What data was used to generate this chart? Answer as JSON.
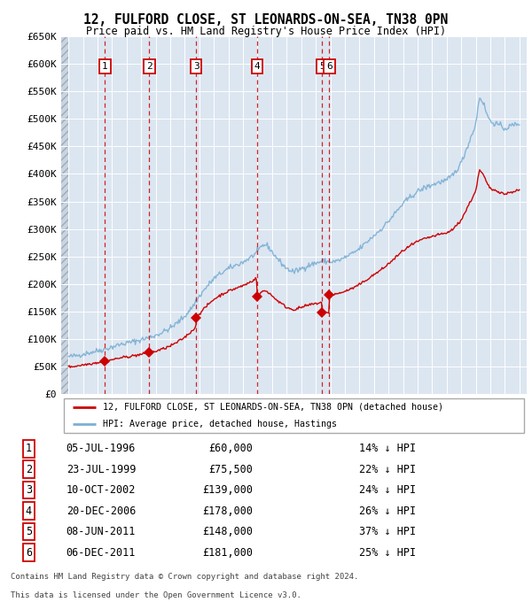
{
  "title1": "12, FULFORD CLOSE, ST LEONARDS-ON-SEA, TN38 0PN",
  "title2": "Price paid vs. HM Land Registry's House Price Index (HPI)",
  "legend1": "12, FULFORD CLOSE, ST LEONARDS-ON-SEA, TN38 0PN (detached house)",
  "legend2": "HPI: Average price, detached house, Hastings",
  "footer1": "Contains HM Land Registry data © Crown copyright and database right 2024.",
  "footer2": "This data is licensed under the Open Government Licence v3.0.",
  "sales": [
    {
      "num": 1,
      "date": "05-JUL-1996",
      "year": 1996.51,
      "price": 60000,
      "pct": "14% ↓ HPI"
    },
    {
      "num": 2,
      "date": "23-JUL-1999",
      "year": 1999.56,
      "price": 75500,
      "pct": "22% ↓ HPI"
    },
    {
      "num": 3,
      "date": "10-OCT-2002",
      "year": 2002.78,
      "price": 139000,
      "pct": "24% ↓ HPI"
    },
    {
      "num": 4,
      "date": "20-DEC-2006",
      "year": 2006.97,
      "price": 178000,
      "pct": "26% ↓ HPI"
    },
    {
      "num": 5,
      "date": "08-JUN-2011",
      "year": 2011.44,
      "price": 148000,
      "pct": "37% ↓ HPI"
    },
    {
      "num": 6,
      "date": "06-DEC-2011",
      "year": 2011.93,
      "price": 181000,
      "pct": "25% ↓ HPI"
    }
  ],
  "price_color": "#cc0000",
  "hpi_color": "#7bafd4",
  "bg_color": "#dce6f1",
  "grid_color": "#ffffff",
  "ylim": [
    0,
    650000
  ],
  "yticks": [
    0,
    50000,
    100000,
    150000,
    200000,
    250000,
    300000,
    350000,
    400000,
    450000,
    500000,
    550000,
    600000,
    650000
  ],
  "xlim_start": 1993.5,
  "xlim_end": 2025.5,
  "xticks": [
    1994,
    1995,
    1996,
    1997,
    1998,
    1999,
    2000,
    2001,
    2002,
    2003,
    2004,
    2005,
    2006,
    2007,
    2008,
    2009,
    2010,
    2011,
    2012,
    2013,
    2014,
    2015,
    2016,
    2017,
    2018,
    2019,
    2020,
    2021,
    2022,
    2023,
    2024,
    2025
  ]
}
